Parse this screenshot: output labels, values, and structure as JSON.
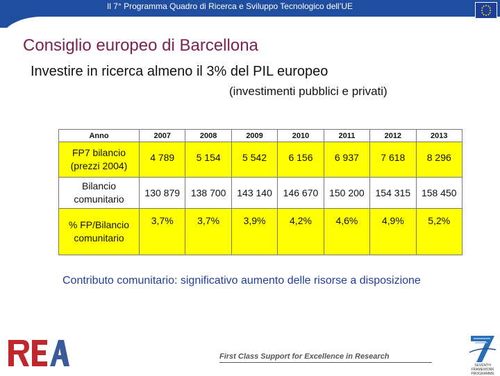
{
  "header": {
    "text": "Il 7° Programma Quadro di Ricerca e Sviluppo Tecnologico dell’UE"
  },
  "title": "Consiglio europeo di Barcellona",
  "subtitle": "Investire in ricerca almeno il 3% del PIL europeo",
  "subnote": "(investimenti pubblici e privati)",
  "table": {
    "header_label": "Anno",
    "years": [
      "2007",
      "2008",
      "2009",
      "2010",
      "2011",
      "2012",
      "2013"
    ],
    "rows": [
      {
        "label_line1": "FP7 bilancio",
        "label_line2": "(prezzi 2004)",
        "values": [
          "4 789",
          "5 154",
          "5 542",
          "6 156",
          "6 937",
          "7 618",
          "8 296"
        ]
      },
      {
        "label_line1": "Bilancio",
        "label_line2": "comunitario",
        "values": [
          "130 879",
          "138 700",
          "143 140",
          "146 670",
          "150 200",
          "154 315",
          "158 450"
        ]
      },
      {
        "label_line1": "% FP/Bilancio",
        "label_line2": "comunitario",
        "values": [
          "3,7%",
          "3,7%",
          "3,9%",
          "4,2%",
          "4,6%",
          "4,9%",
          "5,2%"
        ]
      }
    ]
  },
  "contribution": "Contributo comunitario: significativo aumento delle risorse a disposizione",
  "footer": {
    "tagline": "First Class Support for Excellence in Research",
    "fp7_line1": "SEVENTH FRAMEWORK",
    "fp7_line2": "PROGRAMME",
    "rea_logo_text": "REA"
  },
  "colors": {
    "header_blue": "#1f4ea1",
    "title_purple": "#7b2255",
    "highlight_yellow": "#ffff00",
    "contrib_blue": "#1f3e9a",
    "rea_red": "#c0272d",
    "rea_blue": "#3a5a9a"
  }
}
